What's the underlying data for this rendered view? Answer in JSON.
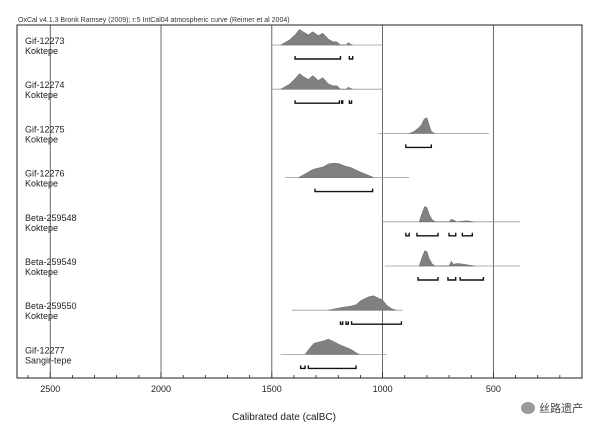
{
  "chart_data": {
    "type": "area",
    "header": "OxCal v4.1.3 Bronk Ramsey (2009); r:5 IntCal04 atmospheric curve (Reimer et al 2004)",
    "xlabel": "Calibrated date (calBC)",
    "ylabel": "",
    "x_direction": "descending",
    "xlim": [
      2650,
      100
    ],
    "x_ticks": [
      2500,
      2000,
      1500,
      1000,
      500
    ],
    "grid": true,
    "series": [
      {
        "sample": "Gif-12273",
        "site": "Koktepe",
        "curve_range": [
          1500,
          1000
        ],
        "density": [
          [
            1460,
            0
          ],
          [
            1420,
            0.3
          ],
          [
            1395,
            0.6
          ],
          [
            1375,
            0.92
          ],
          [
            1355,
            0.75
          ],
          [
            1335,
            0.6
          ],
          [
            1315,
            0.78
          ],
          [
            1290,
            0.55
          ],
          [
            1270,
            0.7
          ],
          [
            1245,
            0.35
          ],
          [
            1225,
            0.2
          ],
          [
            1205,
            0.18
          ],
          [
            1190,
            0
          ],
          [
            1165,
            0
          ],
          [
            1155,
            0.15
          ],
          [
            1145,
            0.05
          ],
          [
            1135,
            0
          ]
        ],
        "ranges_95": [
          [
            1395,
            1190
          ],
          [
            1150,
            1135
          ]
        ]
      },
      {
        "sample": "Gif-12274",
        "site": "Koktepe",
        "curve_range": [
          1500,
          1000
        ],
        "density": [
          [
            1460,
            0
          ],
          [
            1420,
            0.3
          ],
          [
            1395,
            0.62
          ],
          [
            1375,
            0.92
          ],
          [
            1355,
            0.72
          ],
          [
            1335,
            0.58
          ],
          [
            1315,
            0.8
          ],
          [
            1290,
            0.52
          ],
          [
            1270,
            0.68
          ],
          [
            1245,
            0.32
          ],
          [
            1225,
            0.2
          ],
          [
            1205,
            0.2
          ],
          [
            1190,
            0
          ],
          [
            1165,
            0
          ],
          [
            1155,
            0.12
          ],
          [
            1145,
            0.05
          ],
          [
            1135,
            0
          ]
        ],
        "ranges_95": [
          [
            1395,
            1195
          ],
          [
            1185,
            1180
          ],
          [
            1150,
            1140
          ]
        ]
      },
      {
        "sample": "Gif-12275",
        "site": "Koktepe",
        "curve_range": [
          1020,
          520
        ],
        "density": [
          [
            880,
            0
          ],
          [
            860,
            0.1
          ],
          [
            840,
            0.3
          ],
          [
            825,
            0.5
          ],
          [
            812,
            0.85
          ],
          [
            800,
            0.92
          ],
          [
            790,
            0.5
          ],
          [
            780,
            0.12
          ],
          [
            765,
            0
          ]
        ],
        "ranges_95": [
          [
            895,
            780
          ]
        ]
      },
      {
        "sample": "Gif-12276",
        "site": "Koktepe",
        "curve_range": [
          1440,
          880
        ],
        "density": [
          [
            1380,
            0
          ],
          [
            1345,
            0.25
          ],
          [
            1320,
            0.45
          ],
          [
            1295,
            0.55
          ],
          [
            1270,
            0.62
          ],
          [
            1245,
            0.8
          ],
          [
            1220,
            0.85
          ],
          [
            1195,
            0.82
          ],
          [
            1170,
            0.68
          ],
          [
            1145,
            0.6
          ],
          [
            1120,
            0.45
          ],
          [
            1095,
            0.3
          ],
          [
            1060,
            0.12
          ],
          [
            1040,
            0
          ]
        ],
        "ranges_95": [
          [
            1305,
            1045
          ]
        ]
      },
      {
        "sample": "Beta-259548",
        "site": "Koktepe",
        "curve_range": [
          1000,
          380
        ],
        "density": [
          [
            835,
            0
          ],
          [
            822,
            0.5
          ],
          [
            810,
            0.9
          ],
          [
            800,
            0.85
          ],
          [
            790,
            0.45
          ],
          [
            775,
            0.1
          ],
          [
            760,
            0
          ],
          [
            700,
            0
          ],
          [
            690,
            0.15
          ],
          [
            680,
            0.1
          ],
          [
            665,
            0
          ],
          [
            620,
            0.06
          ],
          [
            590,
            0
          ]
        ],
        "ranges_95": [
          [
            895,
            880
          ],
          [
            845,
            750
          ],
          [
            700,
            670
          ],
          [
            640,
            595
          ]
        ]
      },
      {
        "sample": "Beta-259549",
        "site": "Koktepe",
        "curve_range": [
          990,
          380
        ],
        "density": [
          [
            835,
            0
          ],
          [
            822,
            0.5
          ],
          [
            810,
            0.9
          ],
          [
            800,
            0.85
          ],
          [
            790,
            0.45
          ],
          [
            775,
            0.1
          ],
          [
            760,
            0
          ],
          [
            700,
            0
          ],
          [
            690,
            0.28
          ],
          [
            680,
            0.1
          ],
          [
            665,
            0.15
          ],
          [
            640,
            0.12
          ],
          [
            615,
            0.06
          ],
          [
            580,
            0
          ]
        ],
        "ranges_95": [
          [
            840,
            750
          ],
          [
            705,
            670
          ],
          [
            650,
            545
          ]
        ]
      },
      {
        "sample": "Beta-259550",
        "site": "Koktepe",
        "curve_range": [
          1410,
          910
        ],
        "density": [
          [
            1245,
            0
          ],
          [
            1215,
            0.08
          ],
          [
            1190,
            0.15
          ],
          [
            1165,
            0.2
          ],
          [
            1140,
            0.25
          ],
          [
            1120,
            0.32
          ],
          [
            1100,
            0.55
          ],
          [
            1080,
            0.68
          ],
          [
            1060,
            0.8
          ],
          [
            1040,
            0.85
          ],
          [
            1020,
            0.72
          ],
          [
            1000,
            0.6
          ],
          [
            980,
            0.28
          ],
          [
            960,
            0.1
          ],
          [
            940,
            0
          ]
        ],
        "ranges_95": [
          [
            1190,
            1180
          ],
          [
            1165,
            1155
          ],
          [
            1140,
            915
          ]
        ]
      },
      {
        "sample": "Gif-12277",
        "site": "Sangir-tepe",
        "curve_range": [
          1460,
          980
        ],
        "density": [
          [
            1350,
            0
          ],
          [
            1330,
            0.35
          ],
          [
            1310,
            0.65
          ],
          [
            1290,
            0.72
          ],
          [
            1265,
            0.8
          ],
          [
            1245,
            0.9
          ],
          [
            1225,
            0.78
          ],
          [
            1205,
            0.65
          ],
          [
            1185,
            0.52
          ],
          [
            1165,
            0.42
          ],
          [
            1140,
            0.28
          ],
          [
            1120,
            0.1
          ],
          [
            1105,
            0
          ]
        ],
        "ranges_95": [
          [
            1370,
            1350
          ],
          [
            1335,
            1120
          ]
        ]
      }
    ]
  },
  "watermark": {
    "text": "丝路遗产",
    "icon": "wechat-icon"
  }
}
